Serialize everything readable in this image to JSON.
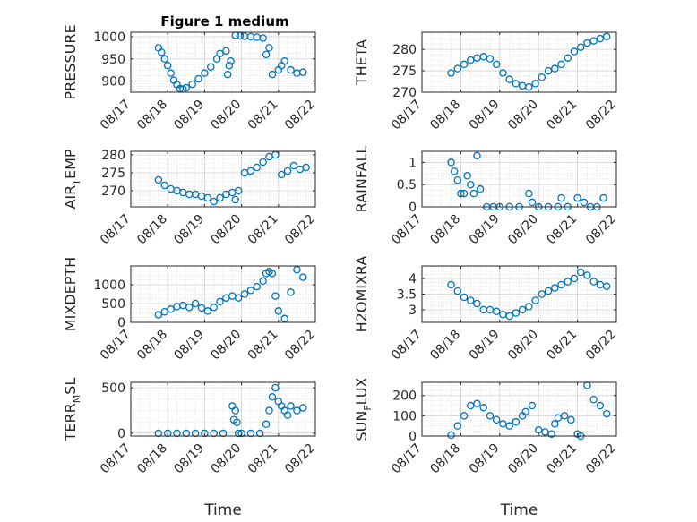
{
  "figure": {
    "title": "Figure 1 medium",
    "accent_color": "#0072BD",
    "marker": "circle"
  },
  "chart_data": [
    {
      "type": "scatter",
      "title": "Figure 1 medium",
      "ylabel": "PRESSURE",
      "xlabel": "",
      "xlim": [
        "08/17",
        "08/22"
      ],
      "ylim": [
        875,
        1010
      ],
      "yticks": [
        900,
        950,
        1000
      ],
      "xticks": [
        "08/17",
        "08/18",
        "08/19",
        "08/20",
        "08/21",
        "08/22"
      ],
      "grid": true,
      "x": [
        "08/17 18:00",
        "08/17 20:00",
        "08/17 22:00",
        "08/18 00:00",
        "08/18 02:00",
        "08/18 04:00",
        "08/18 06:00",
        "08/18 08:00",
        "08/18 10:00",
        "08/18 12:00",
        "08/18 16:00",
        "08/18 20:00",
        "08/19 00:00",
        "08/19 04:00",
        "08/19 08:00",
        "08/19 10:00",
        "08/19 14:00",
        "08/19 15:00",
        "08/19 16:00",
        "08/19 17:00",
        "08/19 20:00",
        "08/19 23:00",
        "08/20 02:00",
        "08/20 06:00",
        "08/20 10:00",
        "08/20 14:00",
        "08/20 16:00",
        "08/20 18:00",
        "08/20 20:00",
        "08/21 00:00",
        "08/21 02:00",
        "08/21 04:00",
        "08/21 08:00",
        "08/21 12:00",
        "08/21 16:00"
      ],
      "y": [
        975,
        965,
        950,
        935,
        918,
        902,
        892,
        883,
        882,
        885,
        893,
        905,
        918,
        932,
        950,
        962,
        968,
        915,
        935,
        945,
        1003,
        1002,
        1001,
        1000,
        999,
        997,
        960,
        975,
        915,
        925,
        935,
        945,
        925,
        918,
        920
      ]
    },
    {
      "type": "scatter",
      "ylabel": "THETA",
      "xlabel": "",
      "xlim": [
        "08/17",
        "08/22"
      ],
      "ylim": [
        270,
        284
      ],
      "yticks": [
        270,
        275,
        280
      ],
      "xticks": [
        "08/17",
        "08/18",
        "08/19",
        "08/20",
        "08/21",
        "08/22"
      ],
      "grid": true,
      "x": [
        "08/17 18:00",
        "08/17 22:00",
        "08/18 02:00",
        "08/18 06:00",
        "08/18 10:00",
        "08/18 14:00",
        "08/18 18:00",
        "08/18 22:00",
        "08/19 02:00",
        "08/19 06:00",
        "08/19 10:00",
        "08/19 14:00",
        "08/19 18:00",
        "08/19 22:00",
        "08/20 02:00",
        "08/20 06:00",
        "08/20 10:00",
        "08/20 14:00",
        "08/20 18:00",
        "08/20 22:00",
        "08/21 02:00",
        "08/21 06:00",
        "08/21 10:00",
        "08/21 14:00",
        "08/21 18:00"
      ],
      "y": [
        274.5,
        275.5,
        276.5,
        277.5,
        278.0,
        278.3,
        277.8,
        276.5,
        274.5,
        273.0,
        272.0,
        271.5,
        271.2,
        272.0,
        273.5,
        275.0,
        275.5,
        276.5,
        278.0,
        279.5,
        280.5,
        281.5,
        282.0,
        282.5,
        283.0
      ]
    },
    {
      "type": "scatter",
      "ylabel": "AIR_TEMP",
      "xlabel": "",
      "xlim": [
        "08/17",
        "08/22"
      ],
      "ylim": [
        265.5,
        281
      ],
      "yticks": [
        270,
        275,
        280
      ],
      "xticks": [
        "08/17",
        "08/18",
        "08/19",
        "08/20",
        "08/21",
        "08/22"
      ],
      "grid": true,
      "x": [
        "08/17 18:00",
        "08/17 22:00",
        "08/18 02:00",
        "08/18 06:00",
        "08/18 10:00",
        "08/18 14:00",
        "08/18 18:00",
        "08/18 22:00",
        "08/19 02:00",
        "08/19 06:00",
        "08/19 10:00",
        "08/19 14:00",
        "08/19 18:00",
        "08/19 20:00",
        "08/19 22:00",
        "08/20 02:00",
        "08/20 06:00",
        "08/20 10:00",
        "08/20 14:00",
        "08/20 18:00",
        "08/20 22:00",
        "08/21 02:00",
        "08/21 06:00",
        "08/21 10:00",
        "08/21 14:00",
        "08/21 18:00"
      ],
      "y": [
        273.0,
        271.5,
        270.5,
        270.0,
        269.5,
        269.0,
        269.0,
        268.5,
        268.0,
        267.0,
        268.0,
        269.0,
        269.5,
        267.5,
        270.0,
        275.0,
        275.5,
        276.5,
        278.0,
        279.5,
        280.0,
        274.5,
        275.5,
        277.0,
        276.0,
        276.5
      ]
    },
    {
      "type": "scatter",
      "ylabel": "RAINFALL",
      "xlabel": "",
      "xlim": [
        "08/17",
        "08/22"
      ],
      "ylim": [
        0,
        1.25
      ],
      "yticks": [
        0,
        0.5,
        1
      ],
      "xticks": [
        "08/17",
        "08/18",
        "08/19",
        "08/20",
        "08/21",
        "08/22"
      ],
      "grid": true,
      "x": [
        "08/17 18:00",
        "08/17 20:00",
        "08/17 22:00",
        "08/18 00:00",
        "08/18 02:00",
        "08/18 04:00",
        "08/18 06:00",
        "08/18 08:00",
        "08/18 10:00",
        "08/18 12:00",
        "08/18 16:00",
        "08/18 20:00",
        "08/19 00:00",
        "08/19 06:00",
        "08/19 12:00",
        "08/19 18:00",
        "08/19 20:00",
        "08/20 00:00",
        "08/20 06:00",
        "08/20 12:00",
        "08/20 14:00",
        "08/20 18:00",
        "08/21 00:00",
        "08/21 04:00",
        "08/21 08:00",
        "08/21 12:00",
        "08/21 16:00"
      ],
      "y": [
        1.0,
        0.8,
        0.6,
        0.3,
        0.3,
        0.7,
        0.5,
        0.3,
        1.15,
        0.4,
        0,
        0,
        0,
        0,
        0,
        0.3,
        0.1,
        0,
        0,
        0,
        0.2,
        0,
        0.2,
        0.1,
        0,
        0,
        0.2
      ]
    },
    {
      "type": "scatter",
      "ylabel": "MIXDEPTH",
      "xlabel": "",
      "xlim": [
        "08/17",
        "08/22"
      ],
      "ylim": [
        0,
        1500
      ],
      "yticks": [
        0,
        500,
        1000
      ],
      "xticks": [
        "08/17",
        "08/18",
        "08/19",
        "08/20",
        "08/21",
        "08/22"
      ],
      "grid": true,
      "x": [
        "08/17 18:00",
        "08/17 22:00",
        "08/18 02:00",
        "08/18 06:00",
        "08/18 10:00",
        "08/18 14:00",
        "08/18 18:00",
        "08/18 22:00",
        "08/19 02:00",
        "08/19 06:00",
        "08/19 10:00",
        "08/19 14:00",
        "08/19 18:00",
        "08/19 22:00",
        "08/20 02:00",
        "08/20 06:00",
        "08/20 10:00",
        "08/20 14:00",
        "08/20 16:00",
        "08/20 18:00",
        "08/20 20:00",
        "08/20 22:00",
        "08/21 00:00",
        "08/21 04:00",
        "08/21 08:00",
        "08/21 12:00",
        "08/21 16:00"
      ],
      "y": [
        200,
        280,
        350,
        420,
        450,
        400,
        500,
        380,
        300,
        400,
        550,
        650,
        700,
        650,
        750,
        850,
        950,
        1100,
        1300,
        1350,
        1300,
        700,
        300,
        100,
        800,
        1400,
        1200
      ]
    },
    {
      "type": "scatter",
      "ylabel": "H2OMIXRA",
      "xlabel": "",
      "xlim": [
        "08/17",
        "08/22"
      ],
      "ylim": [
        2.6,
        4.4
      ],
      "yticks": [
        3,
        3.5,
        4
      ],
      "xticks": [
        "08/17",
        "08/18",
        "08/19",
        "08/20",
        "08/21",
        "08/22"
      ],
      "grid": true,
      "x": [
        "08/17 18:00",
        "08/17 22:00",
        "08/18 02:00",
        "08/18 06:00",
        "08/18 10:00",
        "08/18 14:00",
        "08/18 18:00",
        "08/18 22:00",
        "08/19 02:00",
        "08/19 06:00",
        "08/19 10:00",
        "08/19 14:00",
        "08/19 18:00",
        "08/19 22:00",
        "08/20 02:00",
        "08/20 06:00",
        "08/20 10:00",
        "08/20 14:00",
        "08/20 18:00",
        "08/20 22:00",
        "08/21 02:00",
        "08/21 06:00",
        "08/21 10:00",
        "08/21 14:00",
        "08/21 18:00"
      ],
      "y": [
        3.8,
        3.6,
        3.4,
        3.3,
        3.2,
        3.0,
        3.0,
        2.95,
        2.85,
        2.8,
        2.9,
        3.0,
        3.1,
        3.3,
        3.5,
        3.6,
        3.7,
        3.8,
        3.9,
        4.0,
        4.2,
        4.1,
        3.9,
        3.8,
        3.75
      ]
    },
    {
      "type": "scatter",
      "ylabel": "TERR_MSL",
      "xlabel": "Time",
      "xlim": [
        "08/17",
        "08/22"
      ],
      "ylim": [
        -30,
        560
      ],
      "yticks": [
        0,
        500
      ],
      "xticks": [
        "08/17",
        "08/18",
        "08/19",
        "08/20",
        "08/21",
        "08/22"
      ],
      "grid": true,
      "x": [
        "08/17 18:00",
        "08/18 00:00",
        "08/18 06:00",
        "08/18 12:00",
        "08/18 18:00",
        "08/19 00:00",
        "08/19 06:00",
        "08/19 12:00",
        "08/19 18:00",
        "08/19 19:00",
        "08/19 20:00",
        "08/19 21:00",
        "08/19 22:00",
        "08/20 00:00",
        "08/20 06:00",
        "08/20 12:00",
        "08/20 16:00",
        "08/20 18:00",
        "08/20 20:00",
        "08/20 22:00",
        "08/21 00:00",
        "08/21 02:00",
        "08/21 04:00",
        "08/21 06:00",
        "08/21 08:00",
        "08/21 12:00",
        "08/21 16:00"
      ],
      "y": [
        0,
        0,
        0,
        0,
        0,
        0,
        0,
        0,
        300,
        150,
        250,
        120,
        0,
        0,
        0,
        0,
        100,
        250,
        400,
        500,
        350,
        300,
        250,
        200,
        300,
        250,
        280
      ]
    },
    {
      "type": "scatter",
      "ylabel": "SUN_FLUX",
      "xlabel": "Time",
      "xlim": [
        "08/17",
        "08/22"
      ],
      "ylim": [
        0,
        265
      ],
      "yticks": [
        0,
        100,
        200
      ],
      "xticks": [
        "08/17",
        "08/18",
        "08/19",
        "08/20",
        "08/21",
        "08/22"
      ],
      "grid": true,
      "x": [
        "08/17 18:00",
        "08/17 22:00",
        "08/18 02:00",
        "08/18 06:00",
        "08/18 10:00",
        "08/18 14:00",
        "08/18 18:00",
        "08/18 22:00",
        "08/19 02:00",
        "08/19 06:00",
        "08/19 10:00",
        "08/19 14:00",
        "08/19 16:00",
        "08/19 20:00",
        "08/20 00:00",
        "08/20 04:00",
        "08/20 08:00",
        "08/20 10:00",
        "08/20 12:00",
        "08/20 16:00",
        "08/20 20:00",
        "08/21 00:00",
        "08/21 02:00",
        "08/21 06:00",
        "08/21 10:00",
        "08/21 14:00",
        "08/21 18:00"
      ],
      "y": [
        5,
        50,
        100,
        150,
        160,
        140,
        100,
        80,
        60,
        50,
        70,
        100,
        120,
        150,
        30,
        20,
        10,
        60,
        90,
        100,
        80,
        10,
        0,
        250,
        180,
        150,
        110
      ]
    }
  ]
}
